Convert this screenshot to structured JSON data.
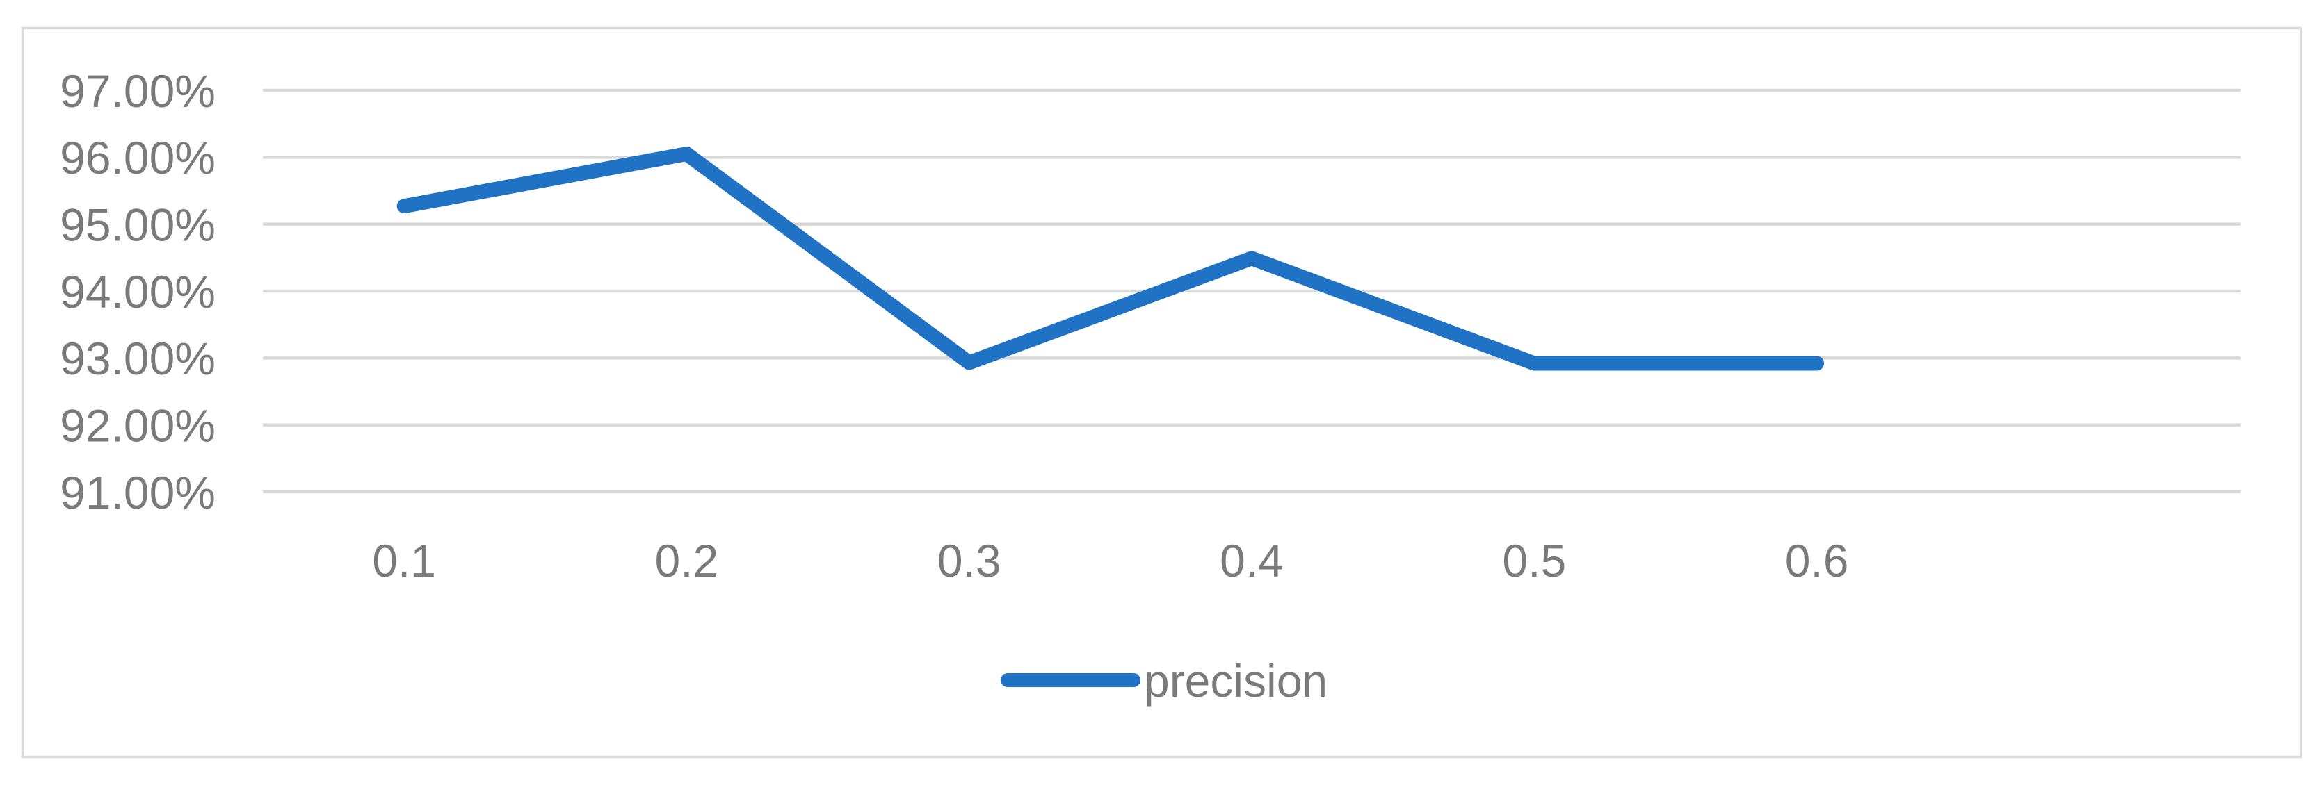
{
  "chart_data": {
    "type": "line",
    "title": "",
    "categories": [
      "0.1",
      "0.2",
      "0.3",
      "0.4",
      "0.5",
      "0.6"
    ],
    "series": [
      {
        "name": "precision",
        "values": [
          95.27,
          96.05,
          92.93,
          94.49,
          92.92,
          92.92
        ]
      }
    ],
    "y_tick_labels": [
      "97.00%",
      "96.00%",
      "95.00%",
      "94.00%",
      "93.00%",
      "92.00%",
      "91.00%"
    ],
    "y_tick_values": [
      97,
      96,
      95,
      94,
      93,
      92,
      91
    ],
    "ylim": [
      91,
      97
    ],
    "y_step": 1,
    "grid": "horizontal-only",
    "axis_line": "none",
    "legend_position": "bottom-center",
    "legend_label": "precision",
    "extra_empty_category_slots": 1
  },
  "colors": {
    "series_line": "#1F72C4",
    "gridline": "#D9D9D9",
    "chart_border": "#D9D9D9",
    "tick_text": "#7A7A7A",
    "legend_text": "#7A7A7A",
    "background": "#FFFFFF"
  }
}
